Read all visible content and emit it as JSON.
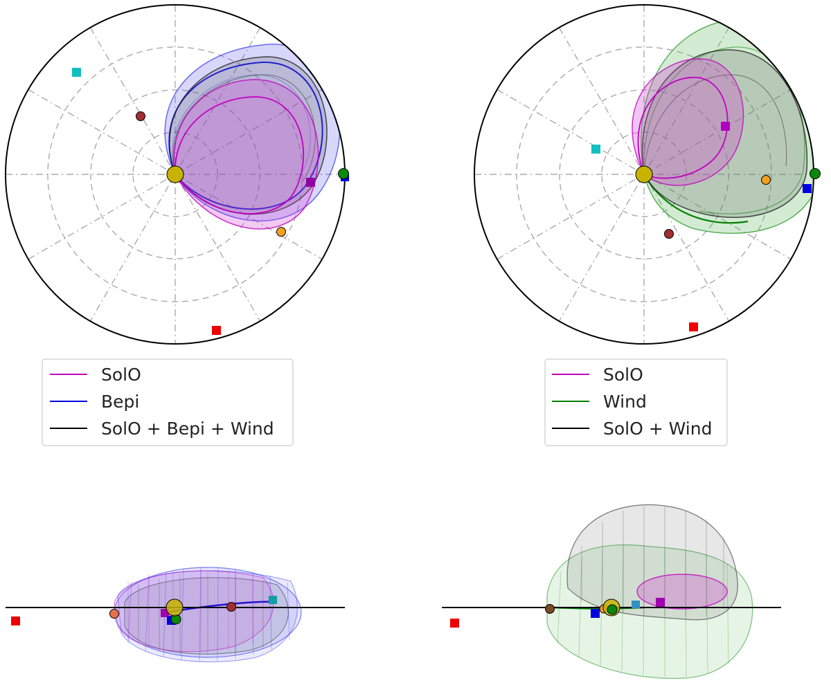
{
  "panels": {
    "top_left": {
      "legend": [
        {
          "label": "SolO",
          "color": "#c000c0"
        },
        {
          "label": "Bepi",
          "color": "#0000e0"
        },
        {
          "label": "SolO + Bepi + Wind",
          "color": "#000000"
        }
      ]
    },
    "top_right": {
      "legend": [
        {
          "label": "SolO",
          "color": "#c000c0"
        },
        {
          "label": "Wind",
          "color": "#008000"
        },
        {
          "label": "SolO + Wind",
          "color": "#000000"
        }
      ]
    }
  },
  "colors": {
    "solo": "#c000c0",
    "bepi": "#1010ee",
    "wind": "#2a9a2a",
    "combined": "#333333",
    "sun": "#c8b400",
    "earth": "#0a8a0a",
    "grid": "#aaaaaa"
  },
  "markers": {
    "sun": "sun-circle",
    "earth": "earth-circle",
    "spacecraft": "square-markers"
  }
}
